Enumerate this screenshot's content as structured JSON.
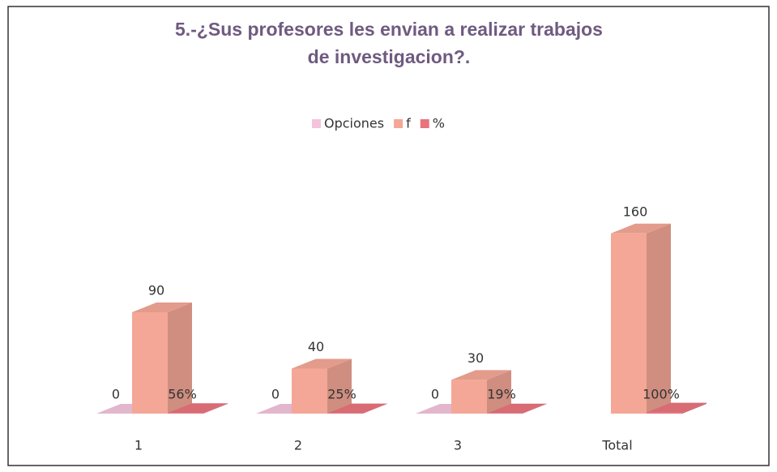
{
  "chart_data": {
    "type": "bar3d",
    "title": "5.-¿Sus profesores les envian a realizar trabajos de investigacion?.",
    "categories": [
      "1",
      "2",
      "3",
      "Total"
    ],
    "series": [
      {
        "name": "Opciones",
        "color": "#f3c4db",
        "values": [
          0,
          0,
          0,
          null
        ],
        "value_labels": [
          "0",
          "0",
          "0",
          null
        ]
      },
      {
        "name": "f",
        "color": "#f4a796",
        "values": [
          90,
          40,
          30,
          160
        ]
      },
      {
        "name": "%",
        "color": "#e8737d",
        "values": [
          0.56,
          0.25,
          0.19,
          1
        ],
        "value_labels": [
          "56%",
          "25%",
          "19%",
          "100%"
        ]
      }
    ],
    "ylim": [
      0,
      180
    ],
    "legend": "top"
  }
}
